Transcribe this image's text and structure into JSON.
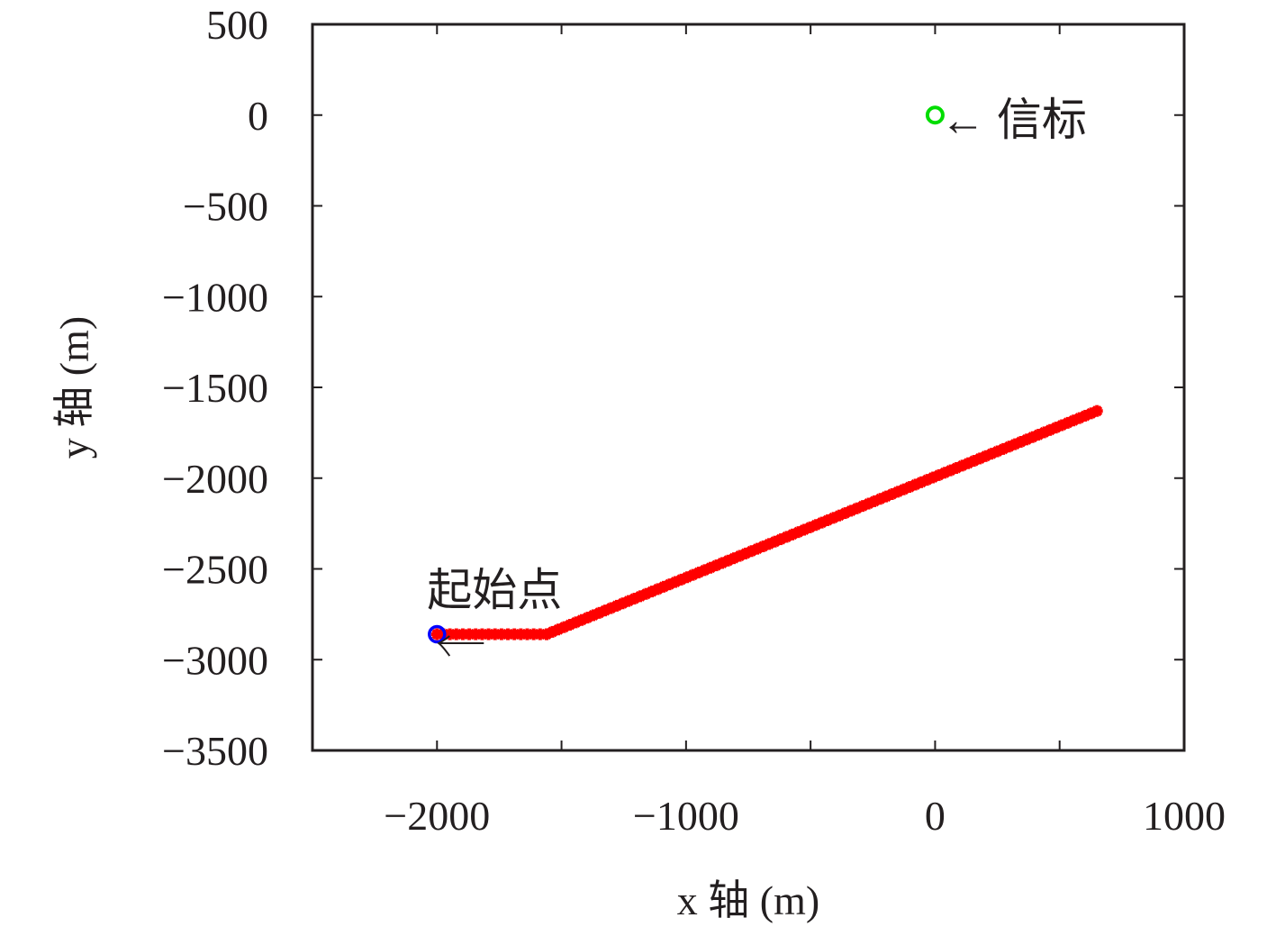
{
  "chart_data": {
    "type": "scatter",
    "xlabel": "x 轴 (m)",
    "ylabel": "y 轴 (m)",
    "xlim": [
      -2500,
      1000
    ],
    "ylim": [
      -3500,
      500
    ],
    "xticks": [
      -2000,
      -1000,
      0,
      1000
    ],
    "xtick_labels": [
      "−2000",
      "−1000",
      "0",
      "1000"
    ],
    "yticks": [
      500,
      0,
      -500,
      -1000,
      -1500,
      -2000,
      -2500,
      -3000,
      -3500
    ],
    "ytick_labels": [
      "500",
      "0",
      "−500",
      "−1000",
      "−1500",
      "−2000",
      "−2500",
      "−3000",
      "−3500"
    ],
    "grid": false,
    "series": [
      {
        "marker": "star",
        "color": "#ff0000",
        "segments": [
          {
            "from": [
              -2000,
              -2860
            ],
            "to": [
              -1560,
              -2860
            ]
          },
          {
            "from": [
              -1560,
              -2860
            ],
            "to": [
              650,
              -1630
            ]
          }
        ]
      },
      {
        "marker": "circle",
        "color": "#0000ff",
        "points": [
          [
            -2000,
            -2860
          ]
        ]
      },
      {
        "marker": "circle",
        "color": "#00dd00",
        "points": [
          [
            0,
            0
          ]
        ]
      }
    ],
    "annotations": [
      {
        "text": "← 信标",
        "x": 0,
        "y": 0
      },
      {
        "text": "起始点",
        "x": -2000,
        "y": -2860
      }
    ]
  }
}
